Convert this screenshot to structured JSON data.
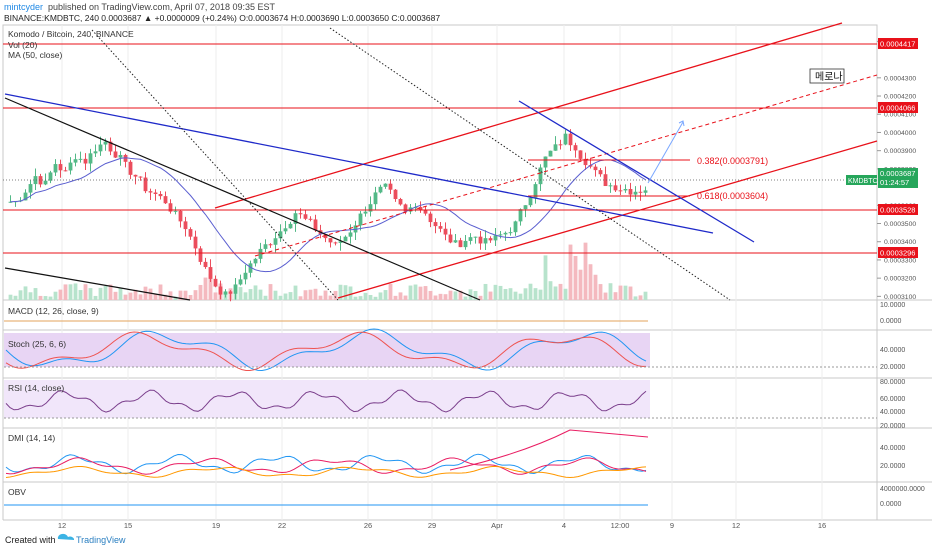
{
  "header": {
    "user": "mintcyder",
    "published": " published on TradingView.com, April 07, 2018 09:35 EST",
    "symbol_line": "BINANCE:KMDBTC, 240  0.0003687 ▲ +0.0000009 (+0.24%) O:0.0003674 H:0.0003690 L:0.0003650 C:0.0003687"
  },
  "chart_title": "Komodo / Bitcoin, 240, BINANCE",
  "indicators_main": [
    "Vol (20)",
    "MA (50, close)"
  ],
  "annotations": {
    "korean_note": "메로나",
    "fib_382": "0.382(0.0003791)",
    "fib_618": "0.618(0.0003604)"
  },
  "price_axis": {
    "ticks": [
      "0.0004500",
      "0.0004300",
      "0.0004200",
      "0.0004100",
      "0.0004000",
      "0.0003900",
      "0.0003800",
      "0.0003600",
      "0.0003500",
      "0.0003400",
      "0.0003300",
      "0.0003200",
      "0.0003100"
    ],
    "level_badges": [
      "0.0004417",
      "0.0004066",
      "0.0003528",
      "0.0003296"
    ],
    "current_price": "0.0003687",
    "current_symbol": "KMDBTC",
    "countdown": "01:24:57"
  },
  "colors": {
    "up": "#53b987",
    "down": "#eb4d5c",
    "sr": "#e8111a",
    "trend_blue": "#1f2ac9",
    "trend_black": "#111111",
    "ma": "#4e52c9",
    "osc_bg": "#e9d6f5"
  },
  "panes": {
    "macd": "MACD (12, 26, close, 9)",
    "stoch": "Stoch (25, 6, 6)",
    "rsi": "RSI (14, close)",
    "dmi": "DMI (14, 14)",
    "obv": "OBV"
  },
  "pane_ticks": {
    "macd": [
      "10.0000",
      "0.0000"
    ],
    "stoch": [
      "40.0000",
      "20.0000"
    ],
    "rsi": [
      "80.0000",
      "60.0000",
      "40.0000",
      "20.0000"
    ],
    "dmi": [
      "40.0000",
      "20.0000"
    ],
    "obv": [
      "4000000.0000",
      "0.0000"
    ]
  },
  "x_axis": [
    "12",
    "15",
    "19",
    "22",
    "26",
    "29",
    "Apr",
    "4",
    "12:00",
    "9",
    "12",
    "16"
  ],
  "footer": {
    "created_with": "Created with",
    "brand": "TradingView"
  },
  "chart_data": {
    "type": "candlestick",
    "title": "Komodo / Bitcoin, 240, BINANCE",
    "ylim": [
      0.000308,
      0.000459
    ],
    "close_series_approx": [
      0.000362,
      0.000368,
      0.000376,
      0.000372,
      0.000383,
      0.000378,
      0.000387,
      0.000384,
      0.000391,
      0.000395,
      0.000388,
      0.000382,
      0.000376,
      0.000369,
      0.000366,
      0.000362,
      0.000355,
      0.000348,
      0.000337,
      0.000325,
      0.000316,
      0.000311,
      0.000315,
      0.000324,
      0.000331,
      0.000338,
      0.000343,
      0.000349,
      0.000356,
      0.000352,
      0.000347,
      0.000342,
      0.000338,
      0.000343,
      0.00035,
      0.000358,
      0.000366,
      0.00037,
      0.000362,
      0.000356,
      0.000361,
      0.000356,
      0.000349,
      0.000343,
      0.000339,
      0.000341,
      0.000343,
      0.00034,
      0.000342,
      0.000345,
      0.00035,
      0.000361,
      0.000373,
      0.000386,
      0.000392,
      0.000398,
      0.000392,
      0.000384,
      0.000378,
      0.000372,
      0.00037,
      0.000369,
      0.000368,
      0.000369
    ],
    "horizontal_levels": [
      0.0004417,
      0.0004066,
      0.0003791,
      0.0003604,
      0.0003528,
      0.0003296
    ],
    "last_price": 0.0003687,
    "change": 9e-07,
    "change_pct": 0.24,
    "ohlc": {
      "open": 0.0003674,
      "high": 0.000369,
      "low": 0.000365,
      "close": 0.0003687
    }
  }
}
